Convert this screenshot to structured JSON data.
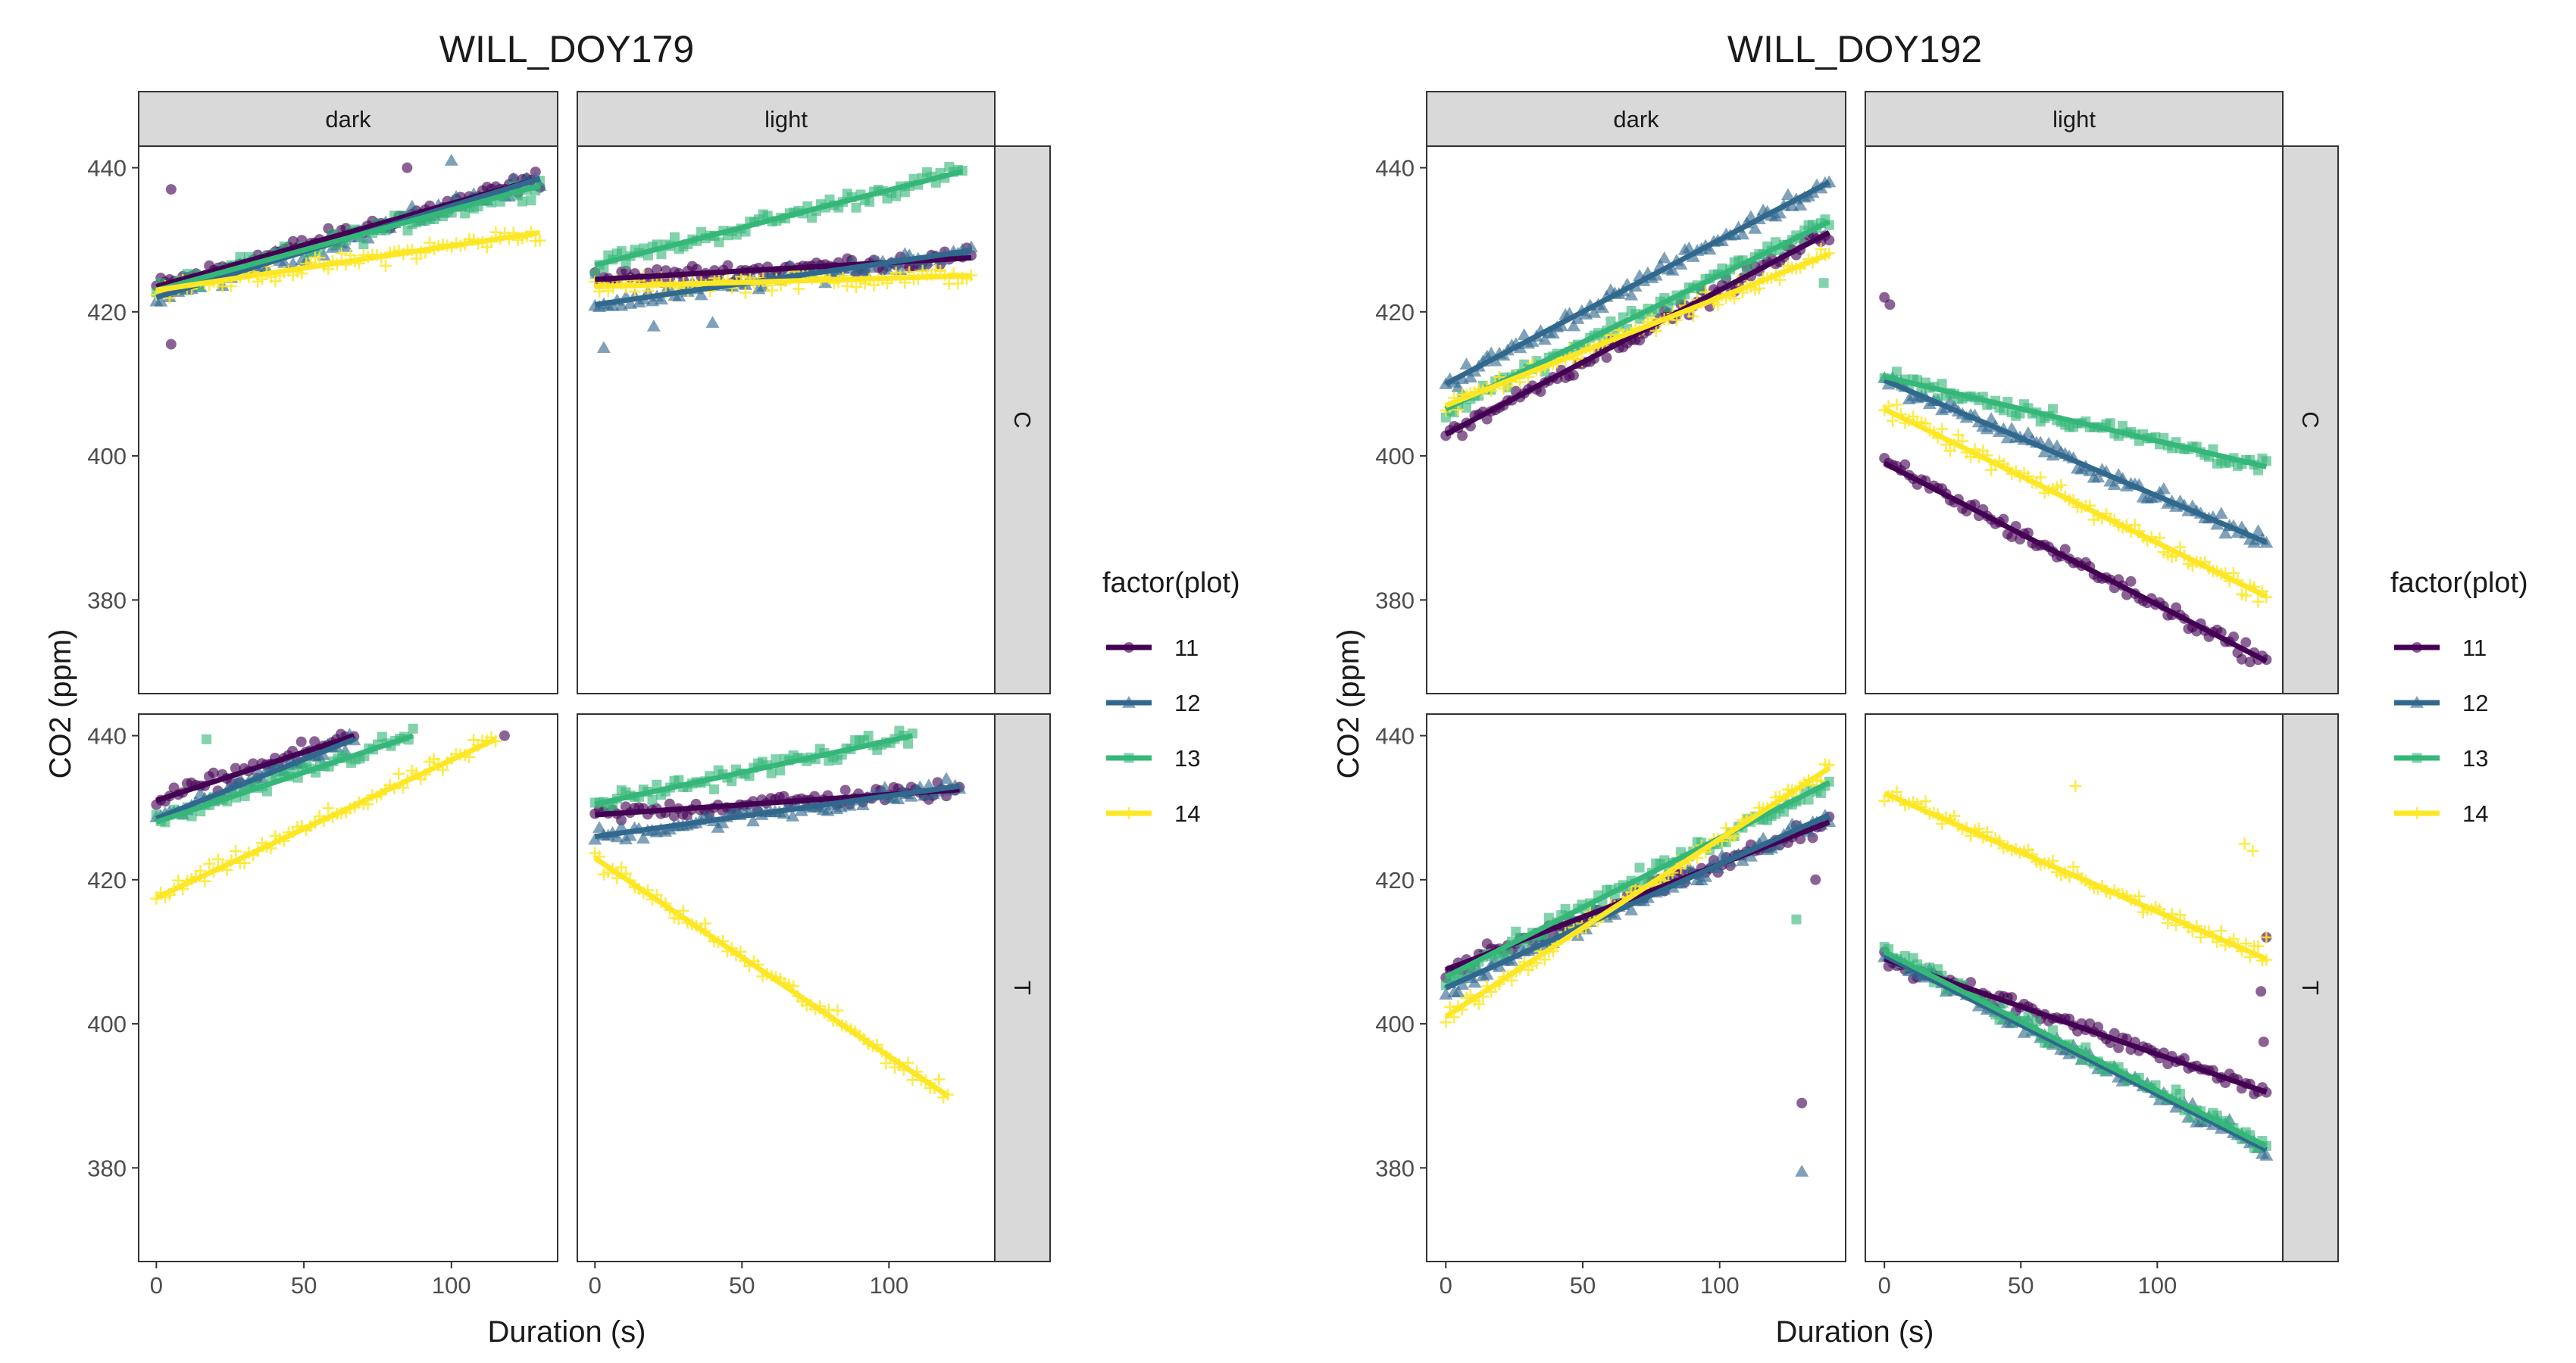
{
  "chart_data": [
    {
      "type": "scatter",
      "title": "WILL_DOY179",
      "xlabel": "Duration (s)",
      "ylabel": "CO2 (ppm)",
      "xlim": [
        -6,
        136
      ],
      "ylim": [
        367,
        443
      ],
      "x_ticks": [
        0,
        50,
        100
      ],
      "y_ticks": [
        380,
        400,
        420,
        440
      ],
      "col_facets": [
        "dark",
        "light"
      ],
      "row_facets": [
        "C",
        "T"
      ],
      "legend": {
        "title": "factor(plot)",
        "position": "right"
      },
      "grid": false,
      "overlays": "points plus linear fit line per series",
      "panels": [
        {
          "col": "dark",
          "row": "C",
          "series": [
            {
              "name": "11",
              "x_end": 130,
              "fit": [
                423.5,
                438.5
              ],
              "outliers": [
                [
                  5,
                  437
                ],
                [
                  5,
                  415.5
                ],
                [
                  85,
                  440
                ]
              ]
            },
            {
              "name": "12",
              "x_end": 130,
              "fit": [
                422.0,
                438.5
              ],
              "outliers": [
                [
                  100,
                  441
                ]
              ]
            },
            {
              "name": "13",
              "x_end": 130,
              "fit": [
                423.0,
                437.5
              ],
              "outliers": []
            },
            {
              "name": "14",
              "x_end": 130,
              "fit": [
                423.0,
                431.0
              ],
              "outliers": []
            }
          ]
        },
        {
          "col": "light",
          "row": "C",
          "series": [
            {
              "name": "11",
              "x_end": 128,
              "fit": [
                424.5,
                427.5
              ],
              "outliers": []
            },
            {
              "name": "12",
              "x_end": 128,
              "fit": [
                421.0,
                428.5
              ],
              "outliers": [
                [
                  3,
                  415
                ],
                [
                  20,
                  418
                ],
                [
                  40,
                  418.5
                ]
              ]
            },
            {
              "name": "13",
              "x_end": 125,
              "fit": [
                426.5,
                439.5
              ],
              "outliers": []
            },
            {
              "name": "14",
              "x_end": 128,
              "fit": [
                423.5,
                425.0
              ],
              "outliers": []
            }
          ]
        },
        {
          "col": "dark",
          "row": "T",
          "series": [
            {
              "name": "11",
              "x_end": 67,
              "fit": [
                431.0,
                440.0
              ],
              "outliers": [
                [
                  118,
                  440
                ]
              ]
            },
            {
              "name": "12",
              "x_end": 67,
              "fit": [
                428.5,
                439.5
              ],
              "outliers": []
            },
            {
              "name": "13",
              "x_end": 87,
              "fit": [
                428.0,
                440.0
              ],
              "outliers": [
                [
                  17,
                  439.5
                ]
              ]
            },
            {
              "name": "14",
              "x_end": 115,
              "fit": [
                417.5,
                439.5
              ],
              "outliers": []
            }
          ]
        },
        {
          "col": "light",
          "row": "T",
          "series": [
            {
              "name": "11",
              "x_end": 124,
              "fit": [
                429.0,
                432.5
              ],
              "outliers": []
            },
            {
              "name": "12",
              "x_end": 124,
              "fit": [
                426.0,
                433.0
              ],
              "outliers": []
            },
            {
              "name": "13",
              "x_end": 108,
              "fit": [
                430.5,
                440.0
              ],
              "outliers": []
            },
            {
              "name": "14",
              "x_end": 120,
              "fit": [
                423.0,
                390.0
              ],
              "outliers": []
            }
          ]
        }
      ]
    },
    {
      "type": "scatter",
      "title": "WILL_DOY192",
      "xlabel": "Duration (s)",
      "ylabel": "CO2 (ppm)",
      "xlim": [
        -7,
        146
      ],
      "ylim": [
        367,
        443
      ],
      "x_ticks": [
        0,
        50,
        100
      ],
      "y_ticks": [
        380,
        400,
        420,
        440
      ],
      "col_facets": [
        "dark",
        "light"
      ],
      "row_facets": [
        "C",
        "T"
      ],
      "legend": {
        "title": "factor(plot)",
        "position": "right"
      },
      "grid": false,
      "overlays": "points plus linear fit line per series",
      "panels": [
        {
          "col": "dark",
          "row": "C",
          "series": [
            {
              "name": "11",
              "x_end": 140,
              "fit": [
                403.0,
                431.0
              ],
              "outliers": []
            },
            {
              "name": "12",
              "x_end": 140,
              "fit": [
                410.0,
                438.0
              ],
              "outliers": []
            },
            {
              "name": "13",
              "x_end": 140,
              "fit": [
                406.5,
                432.5
              ],
              "outliers": [
                [
                  138,
                  424
                ]
              ]
            },
            {
              "name": "14",
              "x_end": 140,
              "fit": [
                407.0,
                428.0
              ],
              "outliers": []
            }
          ]
        },
        {
          "col": "light",
          "row": "C",
          "series": [
            {
              "name": "11",
              "x_end": 140,
              "fit": [
                399.0,
                371.5
              ],
              "outliers": [
                [
                  0,
                  422
                ],
                [
                  2,
                  421
                ]
              ]
            },
            {
              "name": "12",
              "x_end": 140,
              "fit": [
                410.5,
                388.0
              ],
              "outliers": []
            },
            {
              "name": "13",
              "x_end": 140,
              "fit": [
                411.0,
                398.5
              ],
              "outliers": []
            },
            {
              "name": "14",
              "x_end": 140,
              "fit": [
                406.5,
                380.5
              ],
              "outliers": []
            }
          ]
        },
        {
          "col": "dark",
          "row": "T",
          "series": [
            {
              "name": "11",
              "x_end": 140,
              "fit": [
                407.5,
                428.0
              ],
              "outliers": [
                [
                  130,
                  389
                ],
                [
                  135,
                  420
                ]
              ]
            },
            {
              "name": "12",
              "x_end": 140,
              "fit": [
                405.0,
                429.0
              ],
              "outliers": [
                [
                  130,
                  379.5
                ]
              ]
            },
            {
              "name": "13",
              "x_end": 140,
              "fit": [
                406.5,
                433.5
              ],
              "outliers": [
                [
                  128,
                  414.5
                ]
              ]
            },
            {
              "name": "14",
              "x_end": 140,
              "fit": [
                401.0,
                435.5
              ],
              "outliers": []
            }
          ]
        },
        {
          "col": "light",
          "row": "T",
          "series": [
            {
              "name": "11",
              "x_end": 140,
              "fit": [
                409.0,
                390.5
              ],
              "outliers": [
                [
                  138,
                  404.5
                ],
                [
                  139,
                  397.5
                ],
                [
                  140,
                  412
                ]
              ]
            },
            {
              "name": "12",
              "x_end": 140,
              "fit": [
                409.5,
                382.5
              ],
              "outliers": []
            },
            {
              "name": "13",
              "x_end": 140,
              "fit": [
                410.0,
                383.0
              ],
              "outliers": []
            },
            {
              "name": "14",
              "x_end": 140,
              "fit": [
                432.0,
                409.0
              ],
              "outliers": [
                [
                  70,
                  433
                ],
                [
                  132,
                  425
                ],
                [
                  135,
                  424
                ],
                [
                  140,
                  412
                ]
              ]
            }
          ]
        }
      ]
    }
  ],
  "series_style": [
    {
      "name": "11",
      "color": "#440154",
      "marker": "circle"
    },
    {
      "name": "12",
      "color": "#31688E",
      "marker": "triangle"
    },
    {
      "name": "13",
      "color": "#35B779",
      "marker": "square"
    },
    {
      "name": "14",
      "color": "#FDE725",
      "marker": "plus"
    }
  ]
}
